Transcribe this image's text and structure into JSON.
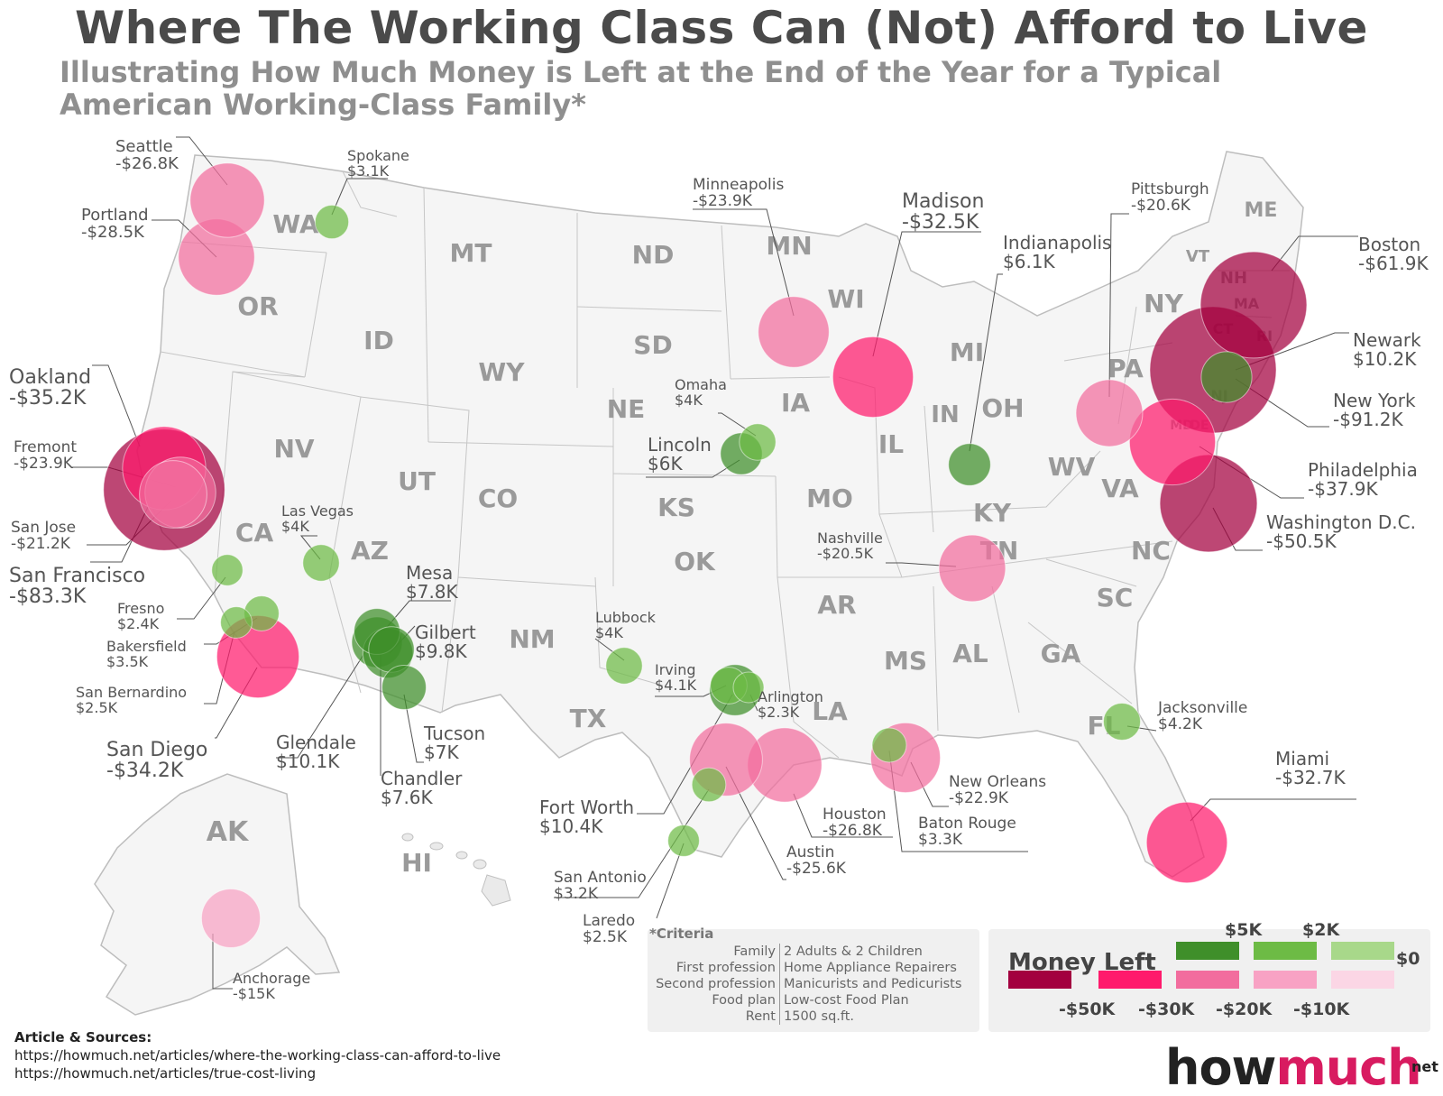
{
  "title": "Where The Working Class Can (Not) Afford to Live",
  "subtitle": "Illustrating How Much Money is Left at the End of the Year for a Typical\nAmerican Working-Class Family*",
  "states": [
    "WA",
    "OR",
    "ID",
    "MT",
    "ND",
    "MN",
    "WI",
    "MI",
    "SD",
    "WY",
    "NE",
    "IA",
    "IL",
    "IN",
    "OH",
    "NV",
    "UT",
    "CO",
    "KS",
    "MO",
    "CA",
    "AZ",
    "NM",
    "OK",
    "AR",
    "TN",
    "KY",
    "WV",
    "VA",
    "NC",
    "SC",
    "TX",
    "LA",
    "MS",
    "AL",
    "GA",
    "FL",
    "PA",
    "NY",
    "ME",
    "VT",
    "NH",
    "MA",
    "CT",
    "RI",
    "NJ",
    "DE",
    "MD",
    "AK",
    "HI"
  ],
  "cities": [
    {
      "name": "Seattle",
      "value": "-$26.8K"
    },
    {
      "name": "Spokane",
      "value": "$3.1K"
    },
    {
      "name": "Portland",
      "value": "-$28.5K"
    },
    {
      "name": "Minneapolis",
      "value": "-$23.9K"
    },
    {
      "name": "Madison",
      "value": "-$32.5K"
    },
    {
      "name": "Pittsburgh",
      "value": "-$20.6K"
    },
    {
      "name": "Indianapolis",
      "value": "$6.1K"
    },
    {
      "name": "Boston",
      "value": "-$61.9K"
    },
    {
      "name": "Newark",
      "value": "$10.2K"
    },
    {
      "name": "New York",
      "value": "-$91.2K"
    },
    {
      "name": "Philadelphia",
      "value": "-$37.9K"
    },
    {
      "name": "Washington D.C.",
      "value": "-$50.5K"
    },
    {
      "name": "Oakland",
      "value": "-$35.2K"
    },
    {
      "name": "Fremont",
      "value": "-$23.9K"
    },
    {
      "name": "San Jose",
      "value": "-$21.2K"
    },
    {
      "name": "San Francisco",
      "value": "-$83.3K"
    },
    {
      "name": "Fresno",
      "value": "$2.4K"
    },
    {
      "name": "Bakersfield",
      "value": "$3.5K"
    },
    {
      "name": "San Bernardino",
      "value": "$2.5K"
    },
    {
      "name": "San Diego",
      "value": "-$34.2K"
    },
    {
      "name": "Las Vegas",
      "value": "$4K"
    },
    {
      "name": "Omaha",
      "value": "$4K"
    },
    {
      "name": "Lincoln",
      "value": "$6K"
    },
    {
      "name": "Nashville",
      "value": "-$20.5K"
    },
    {
      "name": "Mesa",
      "value": "$7.8K"
    },
    {
      "name": "Gilbert",
      "value": "$9.8K"
    },
    {
      "name": "Glendale",
      "value": "$10.1K"
    },
    {
      "name": "Tucson",
      "value": "$7K"
    },
    {
      "name": "Chandler",
      "value": "$7.6K"
    },
    {
      "name": "Lubbock",
      "value": "$4K"
    },
    {
      "name": "Irving",
      "value": "$4.1K"
    },
    {
      "name": "Arlington",
      "value": "$2.3K"
    },
    {
      "name": "Fort Worth",
      "value": "$10.4K"
    },
    {
      "name": "Houston",
      "value": "-$26.8K"
    },
    {
      "name": "Austin",
      "value": "-$25.6K"
    },
    {
      "name": "San Antonio",
      "value": "$3.2K"
    },
    {
      "name": "Laredo",
      "value": "$2.5K"
    },
    {
      "name": "New Orleans",
      "value": "-$22.9K"
    },
    {
      "name": "Baton Rouge",
      "value": "$3.3K"
    },
    {
      "name": "Jacksonville",
      "value": "$4.2K"
    },
    {
      "name": "Miami",
      "value": "-$32.7K"
    },
    {
      "name": "Anchorage",
      "value": "-$15K"
    }
  ],
  "criteria": {
    "header": "*Criteria",
    "rows": [
      {
        "k": "Family",
        "v": "2 Adults & 2 Children"
      },
      {
        "k": "First profession",
        "v": "Home Appliance Repairers"
      },
      {
        "k": "Second profession",
        "v": "Manicurists and Pedicurists"
      },
      {
        "k": "Food plan",
        "v": "Low-cost Food Plan"
      },
      {
        "k": "Rent",
        "v": "1500 sq.ft."
      }
    ]
  },
  "legend": {
    "title": "Money Left",
    "positive_labels": [
      "$5K",
      "$2K",
      "$0"
    ],
    "negative_labels": [
      "-$50K",
      "-$30K",
      "-$20K",
      "-$10K"
    ],
    "positive_colors": [
      "#3f8f2a",
      "#6dbb45",
      "#a8d88a"
    ],
    "negative_colors": [
      "#a3003f",
      "#ff1a6c",
      "#f26d9e",
      "#f8a2c4",
      "#fbd6e5"
    ]
  },
  "sources": {
    "header": "Article & Sources:",
    "links": [
      "https://howmuch.net/articles/where-the-working-class-can-afford-to-live",
      "https://howmuch.net/articles/true-cost-living"
    ]
  },
  "logo": {
    "a": "how",
    "b": "much",
    "c": "net"
  }
}
